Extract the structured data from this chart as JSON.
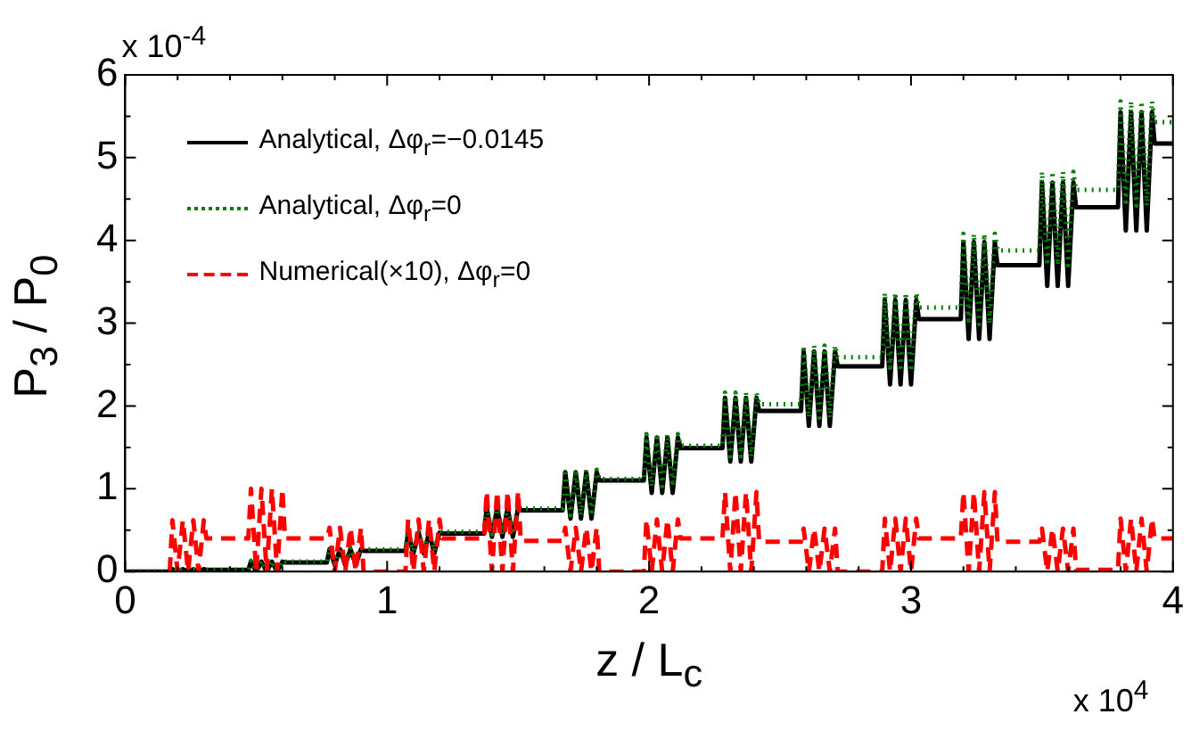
{
  "chart_data": {
    "type": "line",
    "xlabel": "z / L$_{c}$",
    "ylabel": "P$_{3}$ / P$_{0}$",
    "annotations": [
      "x 10$^{-4}$",
      "x 10$^{4}$"
    ],
    "xlim": [
      0,
      4
    ],
    "ylim": [
      0,
      6
    ],
    "xticks": [
      0,
      {
        "value": 0.2,
        "label": null
      },
      {
        "value": 0.4,
        "label": null
      },
      {
        "value": 0.6,
        "label": null
      },
      {
        "value": 0.8,
        "label": null
      },
      1,
      {
        "value": 1.2,
        "label": null
      },
      {
        "value": 1.4,
        "label": null
      },
      {
        "value": 1.6,
        "label": null
      },
      {
        "value": 1.8,
        "label": null
      },
      2,
      {
        "value": 2.2,
        "label": null
      },
      {
        "value": 2.4,
        "label": null
      },
      {
        "value": 2.6,
        "label": null
      },
      {
        "value": 2.8,
        "label": null
      },
      3,
      {
        "value": 3.2,
        "label": null
      },
      {
        "value": 3.4,
        "label": null
      },
      {
        "value": 3.6,
        "label": null
      },
      {
        "value": 3.8,
        "label": null
      },
      4
    ],
    "yticks": [
      0,
      {
        "value": 0.5,
        "label": null
      },
      1,
      {
        "value": 1.5,
        "label": null
      },
      2,
      {
        "value": 2.5,
        "label": null
      },
      3,
      {
        "value": 3.5,
        "label": null
      },
      4,
      {
        "value": 4.5,
        "label": null
      },
      5,
      {
        "value": 5.5,
        "label": null
      },
      6
    ],
    "legend": "top left",
    "marker": "none",
    "x": [
      0,
      0.17,
      0.18,
      0.2,
      0.22,
      0.24,
      0.26,
      0.28,
      0.3,
      0.31,
      0.47,
      0.48,
      0.5,
      0.52,
      0.54,
      0.56,
      0.58,
      0.6,
      0.61,
      0.77,
      0.78,
      0.8,
      0.82,
      0.84,
      0.86,
      0.88,
      0.9,
      0.91,
      1.07,
      1.08,
      1.1,
      1.12,
      1.14,
      1.16,
      1.18,
      1.2,
      1.21,
      1.37,
      1.38,
      1.4,
      1.42,
      1.44,
      1.46,
      1.48,
      1.5,
      1.51,
      1.67,
      1.68,
      1.7,
      1.72,
      1.74,
      1.76,
      1.78,
      1.8,
      1.81,
      1.98,
      1.99,
      2.01,
      2.03,
      2.05,
      2.07,
      2.09,
      2.11,
      2.12,
      2.28,
      2.29,
      2.31,
      2.33,
      2.35,
      2.37,
      2.39,
      2.41,
      2.42,
      2.58,
      2.59,
      2.61,
      2.63,
      2.65,
      2.67,
      2.69,
      2.71,
      2.72,
      2.89,
      2.9,
      2.92,
      2.94,
      2.96,
      2.98,
      3,
      3.02,
      3.03,
      3.19,
      3.2,
      3.22,
      3.24,
      3.26,
      3.28,
      3.3,
      3.32,
      3.33,
      3.49,
      3.5,
      3.52,
      3.54,
      3.56,
      3.58,
      3.6,
      3.62,
      3.63,
      3.79,
      3.8,
      3.82,
      3.84,
      3.86,
      3.88,
      3.9,
      3.92,
      3.93,
      4
    ],
    "series": [
      {
        "name": "Analytical, Δφ$_{r}$=−0.0145",
        "color": "#000000",
        "line_style": "solid",
        "values": [
          0,
          0,
          0.03,
          0,
          0.03,
          0,
          0.03,
          0,
          0.03,
          0.02,
          0.02,
          0.12,
          0,
          0.12,
          0,
          0.12,
          0,
          0.12,
          0.11,
          0.11,
          0.27,
          0.08,
          0.27,
          0.08,
          0.27,
          0.08,
          0.27,
          0.25,
          0.25,
          0.47,
          0.22,
          0.47,
          0.22,
          0.47,
          0.22,
          0.47,
          0.46,
          0.46,
          0.77,
          0.42,
          0.77,
          0.42,
          0.77,
          0.42,
          0.77,
          0.74,
          0.74,
          1.2,
          0.64,
          1.2,
          0.64,
          1.2,
          0.64,
          1.2,
          1.1,
          1.1,
          1.62,
          0.95,
          1.62,
          0.95,
          1.62,
          0.95,
          1.62,
          1.49,
          1.49,
          2.1,
          1.33,
          2.1,
          1.33,
          2.1,
          1.33,
          2.1,
          1.94,
          1.94,
          2.66,
          1.76,
          2.66,
          1.76,
          2.66,
          1.76,
          2.66,
          2.48,
          2.48,
          3.28,
          2.26,
          3.28,
          2.26,
          3.28,
          2.26,
          3.28,
          3.05,
          3.05,
          3.98,
          2.81,
          3.98,
          2.81,
          3.98,
          2.81,
          3.98,
          3.7,
          3.7,
          4.7,
          3.45,
          4.7,
          3.45,
          4.7,
          3.45,
          4.7,
          4.4,
          4.4,
          5.55,
          4.12,
          5.55,
          4.12,
          5.55,
          4.12,
          5.55,
          5.17,
          5.17
        ]
      },
      {
        "name": "Analytical, Δφ$_{r}$=0",
        "color": "#007f00",
        "line_style": "dotted",
        "values": [
          0,
          0,
          0.03,
          0,
          0.03,
          0,
          0.03,
          0,
          0.03,
          0.02,
          0.02,
          0.13,
          0.01,
          0.13,
          0.01,
          0.13,
          0.01,
          0.13,
          0.12,
          0.12,
          0.29,
          0.1,
          0.29,
          0.1,
          0.29,
          0.1,
          0.29,
          0.27,
          0.27,
          0.5,
          0.25,
          0.5,
          0.25,
          0.5,
          0.25,
          0.5,
          0.48,
          0.48,
          0.8,
          0.45,
          0.8,
          0.45,
          0.8,
          0.45,
          0.8,
          0.76,
          0.76,
          1.23,
          0.68,
          1.23,
          0.68,
          1.23,
          0.68,
          1.23,
          1.12,
          1.12,
          1.66,
          1.03,
          1.66,
          1.03,
          1.66,
          1.03,
          1.66,
          1.52,
          1.52,
          2.16,
          1.39,
          2.16,
          1.39,
          2.16,
          1.39,
          2.16,
          2.02,
          2.02,
          2.73,
          1.86,
          2.73,
          1.86,
          2.73,
          1.86,
          2.73,
          2.59,
          2.59,
          3.37,
          2.42,
          3.37,
          2.42,
          3.37,
          2.42,
          3.37,
          3.19,
          3.19,
          4.08,
          2.99,
          4.08,
          2.99,
          4.08,
          2.99,
          4.08,
          3.88,
          3.88,
          4.83,
          3.7,
          4.83,
          3.7,
          4.83,
          3.7,
          4.83,
          4.61,
          4.61,
          5.68,
          4.42,
          5.68,
          4.42,
          5.68,
          4.42,
          5.68,
          5.43,
          5.43
        ]
      },
      {
        "name": "Numerical(×10), Δφ$_{r}$=0",
        "color": "#ff0000",
        "line_style": "dashed",
        "values": [
          null,
          0,
          0.62,
          0,
          0.62,
          0,
          0.62,
          0,
          0.62,
          0.4,
          0.4,
          1,
          0,
          1,
          0,
          1,
          0,
          1,
          0.4,
          0.4,
          0.53,
          0,
          0.53,
          0,
          0.53,
          0,
          0.53,
          0,
          0,
          0.63,
          0,
          0.63,
          0,
          0.63,
          0,
          0.63,
          0.4,
          0.4,
          0.97,
          0,
          0.97,
          0,
          0.97,
          0,
          0.97,
          0.37,
          0.37,
          0.53,
          0,
          0.53,
          0,
          0.53,
          0,
          0.53,
          0,
          0,
          0.63,
          0,
          0.63,
          0,
          0.63,
          0,
          0.63,
          0.4,
          0.4,
          0.96,
          0,
          0.96,
          0,
          0.96,
          0,
          0.96,
          0.36,
          0.36,
          0.52,
          0,
          0.52,
          0,
          0.52,
          0,
          0.52,
          0,
          0,
          0.64,
          0,
          0.64,
          0,
          0.64,
          0,
          0.64,
          0.4,
          0.4,
          0.96,
          0,
          0.96,
          0,
          0.96,
          0,
          0.96,
          0.36,
          0.36,
          0.52,
          0,
          0.52,
          0,
          0.52,
          0,
          0.52,
          0.02,
          0.02,
          0.64,
          0,
          0.64,
          0,
          0.64,
          0,
          0.64,
          0.4,
          0.4
        ]
      }
    ]
  }
}
